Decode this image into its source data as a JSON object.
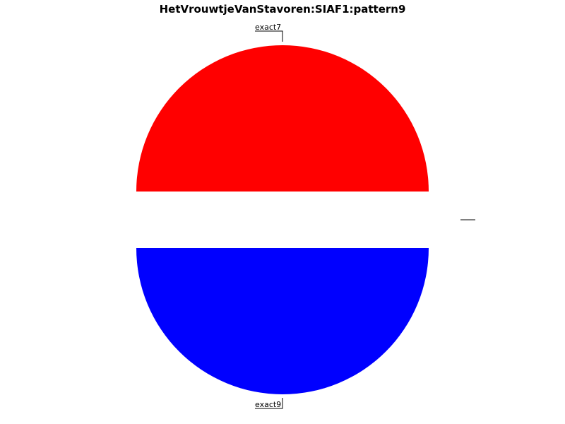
{
  "chart_data": {
    "type": "pie",
    "title": "HetVrouwtjeVanStavoren:SIAF1:pattern9",
    "slices": [
      {
        "label": "exact7",
        "value": 50,
        "color": "#ff0000"
      },
      {
        "label": "exact9",
        "value": 50,
        "color": "#0000ff"
      }
    ]
  }
}
